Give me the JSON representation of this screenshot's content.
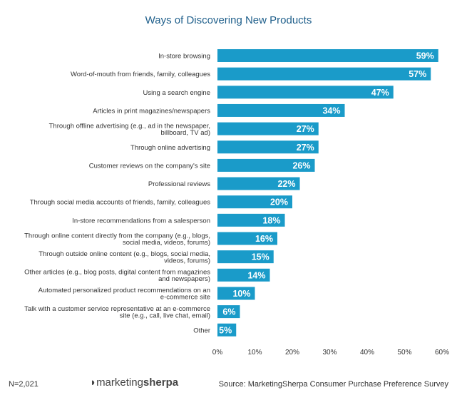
{
  "chart_data": {
    "type": "bar",
    "orientation": "horizontal",
    "title": "Ways of Discovering New Products",
    "categories": [
      [
        "In-store browsing"
      ],
      [
        "Word-of-mouth from friends, family, colleagues"
      ],
      [
        "Using a search engine"
      ],
      [
        "Articles in print magazines/newspapers"
      ],
      [
        "Through offline advertising (e.g., ad in the newspaper,",
        "billboard, TV ad)"
      ],
      [
        "Through online advertising"
      ],
      [
        "Customer reviews on the company's site"
      ],
      [
        "Professional reviews"
      ],
      [
        "Through social media accounts of friends, family, colleagues"
      ],
      [
        "In-store recommendations from a salesperson"
      ],
      [
        "Through online content directly from the company (e.g., blogs,",
        "social media, videos, forums)"
      ],
      [
        "Through outside online content (e.g., blogs, social media,",
        "videos, forums)"
      ],
      [
        "Other articles (e.g., blog posts, digital content from magazines",
        "and newspapers)"
      ],
      [
        "Automated personalized product recommendations on an",
        "e-commerce site"
      ],
      [
        "Talk with a customer service representative at an e-commerce",
        "site (e.g., call, live chat, email)"
      ],
      [
        "Other"
      ]
    ],
    "values": [
      59,
      57,
      47,
      34,
      27,
      27,
      26,
      22,
      20,
      18,
      16,
      15,
      14,
      10,
      6,
      5
    ],
    "value_labels": [
      "59%",
      "57%",
      "47%",
      "34%",
      "27%",
      "27%",
      "26%",
      "22%",
      "20%",
      "18%",
      "16%",
      "15%",
      "14%",
      "10%",
      "6%",
      "5%"
    ],
    "xlim": [
      0,
      60
    ],
    "xticks": [
      0,
      10,
      20,
      30,
      40,
      50,
      60
    ],
    "xtick_labels": [
      "0%",
      "10%",
      "20%",
      "30%",
      "40%",
      "50%",
      "60%"
    ],
    "grid": false,
    "bar_color": "#1a9bc9"
  },
  "footer": {
    "sample_size": "N=2,021",
    "logo_light": "marketing",
    "logo_bold": "sherpa",
    "source": "Source: MarketingSherpa Consumer Purchase Preference Survey"
  }
}
